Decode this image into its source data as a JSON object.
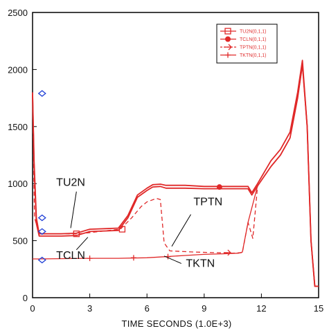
{
  "chart_data": {
    "type": "line",
    "title": "",
    "xlabel": "TIME SECONDS (1.0E+3)",
    "ylabel": "",
    "xlim": [
      0,
      15
    ],
    "ylim": [
      0,
      2500
    ],
    "grid": false,
    "legend_position": "top-right",
    "x_ticks": [
      0,
      3,
      6,
      9,
      12,
      15
    ],
    "x_tick_labels": [
      "0",
      "3",
      "6",
      "9",
      "12",
      "15"
    ],
    "y_ticks": [
      0,
      500,
      1000,
      1500,
      2000,
      2500
    ],
    "y_tick_labels": [
      "0",
      "500",
      "1000",
      "1500",
      "2000",
      "2500"
    ],
    "colors": {
      "series": "#e02828",
      "axis": "#000000",
      "initial_markers": "#1f3fd6"
    },
    "legend": [
      "TU2N(0,1,1)",
      "TCLN(0,1,1)",
      "TPTN(0,1,1)",
      "TKTN(0,1,1)"
    ],
    "series": [
      {
        "name": "TU2N(0,1,1)",
        "style": "solid-square",
        "x": [
          0,
          0.08,
          0.2,
          0.35,
          1.5,
          2.3,
          3.0,
          3.8,
          4.5,
          5.0,
          5.5,
          6.0,
          6.3,
          6.7,
          7.0,
          8.0,
          9.0,
          9.8,
          10.5,
          11.0,
          11.3,
          11.5,
          11.8,
          12.5,
          13.0,
          13.5,
          13.9,
          14.15,
          14.4,
          14.6,
          14.8,
          15.0
        ],
        "values": [
          1800,
          1200,
          700,
          560,
          560,
          565,
          600,
          605,
          610,
          720,
          900,
          960,
          990,
          995,
          985,
          985,
          975,
          975,
          975,
          975,
          975,
          920,
          1000,
          1200,
          1300,
          1450,
          1800,
          2080,
          1500,
          500,
          100,
          100
        ]
      },
      {
        "name": "TCLN(0,1,1)",
        "style": "solid-circle",
        "x": [
          0,
          0.08,
          0.2,
          0.35,
          1.5,
          2.3,
          3.0,
          3.8,
          4.5,
          5.0,
          5.5,
          6.0,
          6.3,
          6.7,
          7.0,
          8.0,
          9.0,
          9.8,
          10.5,
          11.0,
          11.3,
          11.5,
          11.8,
          12.5,
          13.0,
          13.5,
          13.9,
          14.15,
          14.4,
          14.6,
          14.8,
          15.0
        ],
        "values": [
          1780,
          1150,
          650,
          540,
          540,
          545,
          580,
          585,
          590,
          700,
          880,
          940,
          970,
          975,
          960,
          960,
          955,
          955,
          955,
          955,
          955,
          900,
          980,
          1150,
          1250,
          1400,
          1750,
          2040,
          1500,
          500,
          100,
          100
        ]
      },
      {
        "name": "TPTN(0,1,1)",
        "style": "dashed-arrow",
        "x": [
          0,
          0.1,
          0.35,
          2.5,
          4.0,
          4.6,
          5.2,
          5.7,
          6.0,
          6.5,
          6.7,
          6.9,
          7.2,
          8.5,
          9.5,
          10.5,
          11.0,
          11.3,
          11.55,
          11.8,
          12.5,
          13.0,
          13.5,
          13.9,
          14.15,
          14.4
        ],
        "values": [
          1780,
          700,
          560,
          560,
          590,
          600,
          700,
          800,
          840,
          870,
          860,
          480,
          410,
          400,
          395,
          390,
          395,
          660,
          520,
          980,
          1150,
          1250,
          1400,
          1750,
          2040,
          1500
        ]
      },
      {
        "name": "TKTN(0,1,1)",
        "style": "solid-plus",
        "x": [
          0,
          0.35,
          3.0,
          4.5,
          6.0,
          7.0,
          8.0,
          9.0,
          10.0,
          10.8,
          11.0,
          11.3,
          11.8,
          12.5,
          13.0,
          13.5,
          13.9,
          14.15,
          14.4
        ],
        "values": [
          340,
          340,
          345,
          345,
          350,
          360,
          370,
          380,
          385,
          390,
          400,
          660,
          980,
          1150,
          1250,
          1400,
          1750,
          2040,
          1500
        ]
      }
    ],
    "annotations": [
      {
        "text": "TU2N",
        "x": 2.0,
        "y": 980
      },
      {
        "text": "TCLN",
        "x": 2.0,
        "y": 340
      },
      {
        "text": "TPTN",
        "x": 9.2,
        "y": 810
      },
      {
        "text": "TKTN",
        "x": 8.8,
        "y": 270
      }
    ],
    "marker_points": [
      {
        "series": 0,
        "x": 2.3,
        "y": 560
      },
      {
        "series": 0,
        "x": 4.7,
        "y": 600
      },
      {
        "series": 1,
        "x": 9.8,
        "y": 970
      },
      {
        "series": 2,
        "x": 10.2,
        "y": 395
      },
      {
        "series": 3,
        "x": 3.0,
        "y": 345
      },
      {
        "series": 3,
        "x": 5.3,
        "y": 350
      },
      {
        "series": 3,
        "x": 7.1,
        "y": 360
      }
    ],
    "initial_markers_y": [
      1790,
      700,
      580,
      330
    ]
  }
}
